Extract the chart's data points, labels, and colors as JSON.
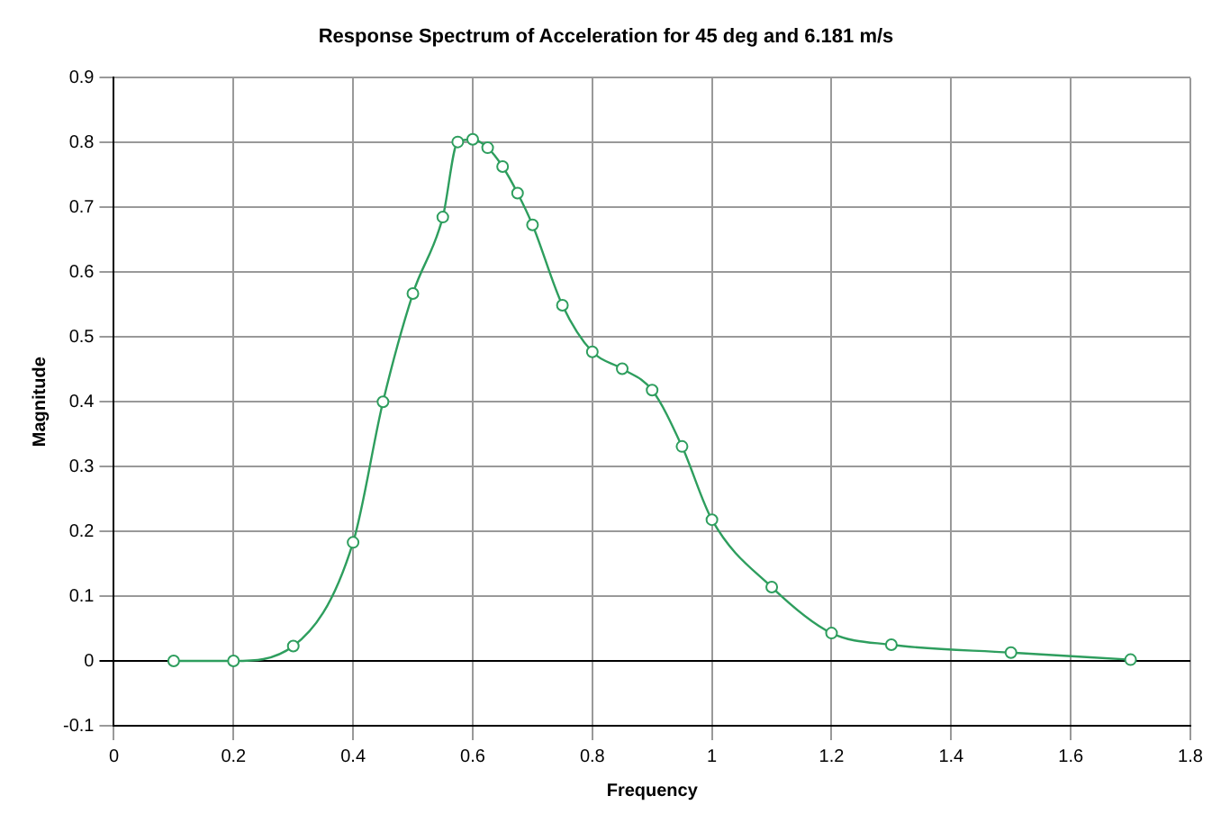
{
  "chart_data": {
    "type": "line",
    "title": "Response Spectrum of Acceleration for 45 deg and 6.181 m/s",
    "xlabel": "Frequency",
    "ylabel": "Magnitude",
    "x": [
      0.1,
      0.2,
      0.3,
      0.4,
      0.45,
      0.5,
      0.55,
      0.575,
      0.6,
      0.625,
      0.65,
      0.675,
      0.7,
      0.75,
      0.8,
      0.85,
      0.9,
      0.95,
      1.0,
      1.1,
      1.2,
      1.3,
      1.5,
      1.7
    ],
    "series": [
      {
        "color": "#2e9e5e",
        "values": [
          0,
          0,
          0.023,
          0.183,
          0.4,
          0.567,
          0.685,
          0.801,
          0.805,
          0.792,
          0.763,
          0.722,
          0.673,
          0.549,
          0.477,
          0.451,
          0.418,
          0.331,
          0.218,
          0.114,
          0.043,
          0.025,
          0.013,
          0.002
        ]
      }
    ],
    "xlim": [
      0,
      1.8
    ],
    "xticks": [
      0,
      0.2,
      0.4,
      0.6,
      0.8,
      1,
      1.2,
      1.4,
      1.6,
      1.8
    ],
    "ylim": [
      -0.1,
      0.9
    ],
    "yticks": [
      -0.1,
      0,
      0.1,
      0.2,
      0.3,
      0.4,
      0.5,
      0.6,
      0.7,
      0.8,
      0.9
    ],
    "grid": true,
    "legend": false,
    "marker": "circle",
    "line_style": "solid"
  }
}
